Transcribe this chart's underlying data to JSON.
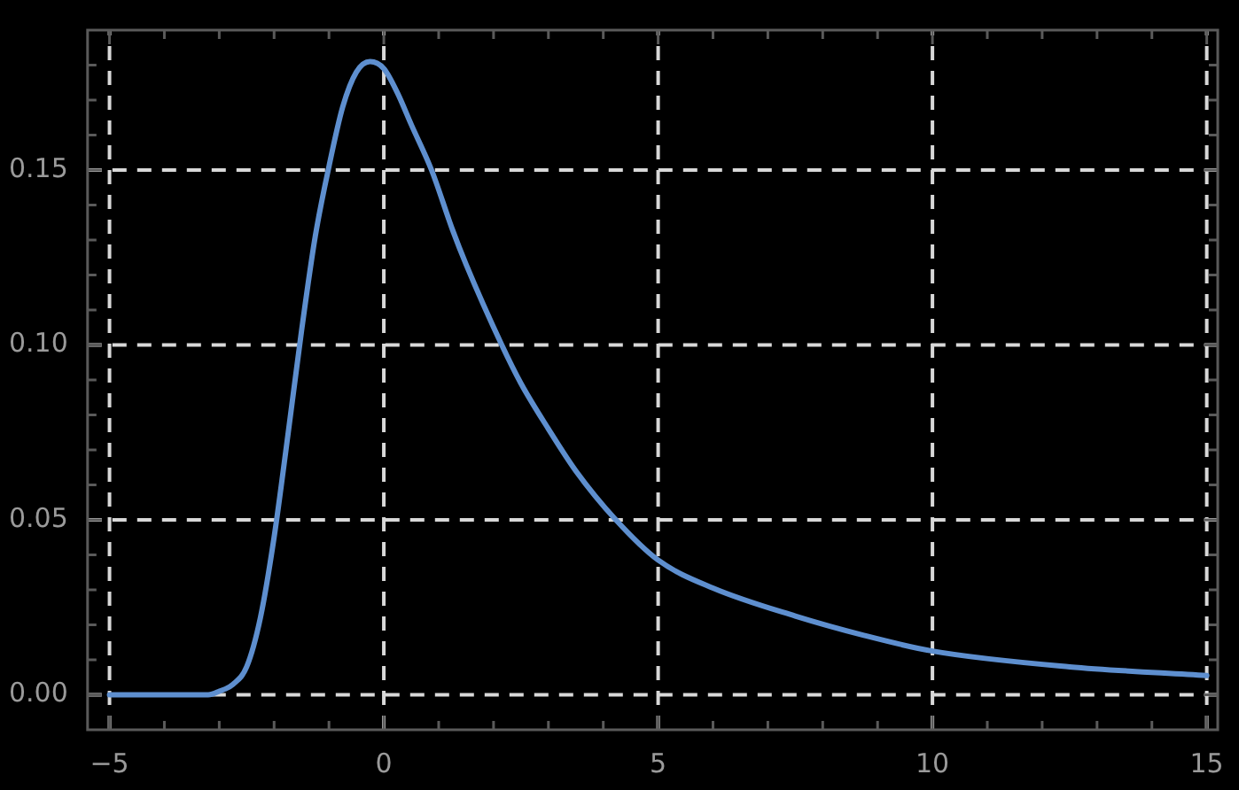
{
  "chart_data": {
    "type": "line",
    "x": [
      -5,
      -4,
      -3.2,
      -3,
      -2.75,
      -2.5,
      -2.25,
      -2,
      -1.75,
      -1.5,
      -1.25,
      -1,
      -0.75,
      -0.5,
      -0.25,
      0,
      0.25,
      0.5,
      0.87,
      1.25,
      1.5,
      2.15,
      2.5,
      3,
      3.5,
      4.23,
      5,
      6,
      7.5,
      8.75,
      10,
      12.5,
      15
    ],
    "series": [
      {
        "color": "#5e8fcf",
        "values": [
          0,
          0,
          0,
          0.001,
          0.003,
          0.008,
          0.022,
          0.045,
          0.074,
          0.104,
          0.131,
          0.151,
          0.168,
          0.178,
          0.181,
          0.179,
          0.172,
          0.163,
          0.15,
          0.133,
          0.123,
          0.1,
          0.089,
          0.076,
          0.064,
          0.05,
          0.0385,
          0.0305,
          0.0225,
          0.017,
          0.0125,
          0.008,
          0.0055
        ]
      }
    ],
    "xlim": [
      -5.4,
      15.2
    ],
    "ylim": [
      -0.01,
      0.19
    ],
    "xticks": [
      {
        "value": -5,
        "label": "−5"
      },
      {
        "value": -4,
        "label": null
      },
      {
        "value": -3,
        "label": null
      },
      {
        "value": -2,
        "label": null
      },
      {
        "value": -1,
        "label": null
      },
      0,
      {
        "value": 1,
        "label": null
      },
      {
        "value": 2,
        "label": null
      },
      {
        "value": 3,
        "label": null
      },
      {
        "value": 4,
        "label": null
      },
      5,
      {
        "value": 6,
        "label": null
      },
      {
        "value": 7,
        "label": null
      },
      {
        "value": 8,
        "label": null
      },
      {
        "value": 9,
        "label": null
      },
      10,
      {
        "value": 11,
        "label": null
      },
      {
        "value": 12,
        "label": null
      },
      {
        "value": 13,
        "label": null
      },
      {
        "value": 14,
        "label": null
      },
      15
    ],
    "yticks": [
      {
        "value": 0,
        "label": "0.00"
      },
      {
        "value": 0.01,
        "label": null
      },
      {
        "value": 0.02,
        "label": null
      },
      {
        "value": 0.03,
        "label": null
      },
      {
        "value": 0.04,
        "label": null
      },
      {
        "value": 0.05,
        "label": "0.05"
      },
      {
        "value": 0.06,
        "label": null
      },
      {
        "value": 0.07,
        "label": null
      },
      {
        "value": 0.08,
        "label": null
      },
      {
        "value": 0.09,
        "label": null
      },
      {
        "value": 0.1,
        "label": "0.10"
      },
      {
        "value": 0.11,
        "label": null
      },
      {
        "value": 0.12,
        "label": null
      },
      {
        "value": 0.13,
        "label": null
      },
      {
        "value": 0.14,
        "label": null
      },
      {
        "value": 0.15,
        "label": "0.15"
      },
      {
        "value": 0.16,
        "label": null
      },
      {
        "value": 0.17,
        "label": null
      },
      {
        "value": 0.18,
        "label": null
      }
    ],
    "grid": true,
    "marker": "none",
    "line_style": "solid"
  }
}
